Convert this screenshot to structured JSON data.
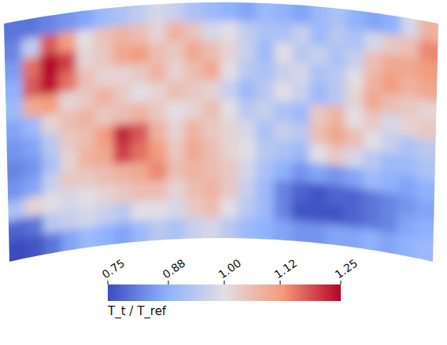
{
  "chart_data": {
    "type": "heatmap",
    "colorbar_title": "T_t / T_ref",
    "colorbar_range": [
      0.75,
      1.25
    ],
    "colorbar_ticks": [
      0.75,
      0.88,
      {
        "value": 1,
        "label": "1.00"
      },
      1.12,
      1.25
    ],
    "tick_labels": false,
    "cells": [
      [
        0.8,
        0.8,
        0.82,
        0.84,
        0.86,
        0.9,
        0.92,
        0.95,
        0.98,
        0.96,
        0.92,
        0.9,
        0.88,
        0.86,
        0.9,
        0.88,
        0.86,
        0.9,
        0.92,
        0.88,
        0.86,
        0.88,
        0.98,
        1.08
      ],
      [
        0.82,
        0.95,
        1.18,
        1.12,
        1.0,
        1.05,
        1.08,
        1.06,
        1.02,
        1.08,
        1.05,
        0.98,
        1.0,
        0.95,
        0.92,
        0.92,
        0.96,
        0.9,
        0.94,
        0.92,
        0.98,
        1.04,
        1.06,
        1.14
      ],
      [
        0.85,
        1.16,
        1.25,
        1.2,
        1.02,
        1.04,
        1.1,
        1.12,
        1.06,
        1.04,
        1.1,
        1.06,
        1.02,
        0.96,
        0.9,
        1.0,
        0.94,
        0.96,
        0.92,
        0.96,
        1.06,
        1.1,
        1.1,
        1.12
      ],
      [
        0.88,
        1.18,
        1.24,
        1.16,
        1.06,
        1.02,
        1.02,
        1.04,
        1.08,
        1.02,
        1.06,
        1.1,
        1.0,
        0.94,
        0.92,
        0.96,
        0.98,
        0.92,
        0.94,
        1.0,
        1.08,
        1.12,
        1.08,
        1.1
      ],
      [
        0.9,
        1.1,
        1.12,
        1.02,
        1.04,
        1.08,
        1.04,
        1.0,
        1.02,
        1.06,
        1.04,
        1.02,
        0.96,
        0.9,
        0.94,
        1.0,
        0.96,
        0.9,
        0.94,
        1.02,
        1.1,
        1.06,
        1.04,
        1.02
      ],
      [
        0.86,
        0.9,
        1.02,
        1.06,
        1.08,
        1.04,
        1.06,
        1.08,
        1.04,
        1.0,
        1.02,
        1.06,
        1.0,
        0.94,
        0.96,
        0.92,
        0.9,
        1.04,
        1.08,
        1.0,
        1.04,
        0.98,
        1.02,
        1.04
      ],
      [
        0.84,
        0.86,
        0.94,
        1.04,
        1.06,
        1.12,
        1.22,
        1.18,
        1.08,
        1.02,
        1.08,
        1.04,
        1.02,
        0.98,
        0.92,
        0.96,
        0.94,
        1.06,
        1.1,
        1.06,
        1.0,
        0.96,
        0.92,
        0.94
      ],
      [
        0.82,
        0.84,
        0.92,
        1.02,
        1.08,
        1.1,
        1.2,
        1.16,
        1.12,
        1.04,
        1.1,
        1.06,
        1.02,
        1.0,
        0.94,
        0.92,
        0.9,
        1.0,
        1.04,
        0.98,
        0.94,
        0.9,
        0.9,
        0.92
      ],
      [
        0.84,
        0.86,
        0.96,
        1.04,
        1.04,
        1.06,
        1.08,
        1.1,
        1.14,
        1.06,
        1.08,
        1.06,
        1.04,
        0.98,
        0.92,
        0.88,
        0.84,
        0.86,
        0.84,
        0.86,
        0.9,
        0.88,
        0.86,
        0.88
      ],
      [
        0.92,
        1.02,
        1.0,
        0.98,
        1.0,
        1.02,
        1.04,
        1.06,
        1.06,
        1.02,
        1.06,
        1.08,
        1.04,
        0.96,
        0.9,
        0.82,
        0.78,
        0.76,
        0.78,
        0.78,
        0.8,
        0.82,
        0.84,
        0.86
      ],
      [
        0.78,
        0.8,
        0.94,
        0.96,
        0.98,
        0.96,
        0.94,
        1.0,
        1.0,
        0.98,
        1.04,
        1.06,
        1.0,
        0.94,
        0.9,
        0.82,
        0.76,
        0.76,
        0.76,
        0.78,
        0.8,
        0.82,
        0.86,
        0.88
      ],
      [
        0.75,
        0.76,
        0.8,
        0.86,
        0.9,
        0.88,
        0.86,
        0.9,
        0.94,
        0.92,
        0.96,
        0.98,
        0.94,
        0.9,
        0.88,
        0.86,
        0.84,
        0.84,
        0.86,
        0.86,
        0.88,
        0.86,
        0.88,
        0.9
      ]
    ]
  }
}
